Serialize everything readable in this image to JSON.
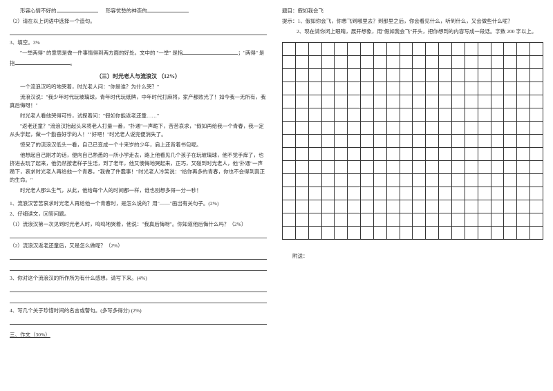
{
  "left": {
    "l1a": "形容心情不好的",
    "l1b": "形容忧愁的神态的",
    "l2": "（2）请在以上词语中选择一个造句。",
    "q3": "3、填空。3%",
    "q3text1": "\"一举两得\" 的意思是做一件事情得到两方面的好处。文中的 \"一举\" 是指",
    "q3text2": "\"两得\" 是",
    "q3text3": "指",
    "sectionTitle": "（三）时光老人与流浪汉 （12%）",
    "p1": "一个流浪汉呜呜地哭着，时光老人问：\"你是谁？为什么哭？\"",
    "p2": "流浪汉说：\"我少年时代玩玻璃球，青年时代玩纸牌，中年时代打麻将，家产都败光了！如今我一无所有，我真后悔呀！\"",
    "p3": "时光老人看他哭得可怜，试探着问：\"假如你能返老还童……\"",
    "p4": "\"返老还童？\"流浪汉抬起头来将老人打量一番，\"扑通\"一声跪下，苦苦哀求，\"假如再给我一个青春，我一定从头学起，做一个勤奋好学的人！\"\"好吧！\"时光老人说完便消失了。",
    "p5": "惊呆了的流浪汉低头一看，自己已变成一个十来岁的少年，肩上还背着书包呢。",
    "p6": "他想起自己刚才的话，便向自己熟悉的一所小学走去，路上他看见几个孩子在玩玻璃球，他不觉手痒了，也挤进去玩了起来，他仍然按老样子生活，到了老年，他又懊悔地哭起来，正巧，又碰到时光老人，他\"扑通\"一声跪下，哀求时光老人再给他一个青春，\"我做了件蠢事！\"时光老人冷笑说：\"给你再多的青春，你也不会得到真正的生命。\"",
    "p7": "时光老人那么生气，从此，他给每个人的时间都一样，谁也别想多得一分一秒！",
    "q1": "1、流浪汉苦苦哀求时光老人再给他一个青春时，是怎么说的？用\"——\"画出有关句子。(2%)",
    "q2": "2、仔细读文，回答问题。",
    "q2a": "（1）流浪汉第一次见到时光老人时，呜呜地哭着，他说：\"我真后悔呀\"。你知道他后悔什么吗？（2%）",
    "q2b": "（2）流浪汉返老还童后，又是怎么做呢？（2%）",
    "q3main": "3、你对这个流浪汉的所作所为有什么感想，请写下来。(4%)",
    "q4": "4、写几个关于珍惜时间的名言或警句。(多写多得分) (2%)",
    "section3": "三、作文（30%）"
  },
  "right": {
    "topic": "题目：假如我会飞",
    "hint1lbl": "提示：",
    "hint1": "1、假如你会飞，你想飞到哪里去？到那里之后，你会看见什么，听到什么，又会做些什么呢？",
    "hint2": "2、现在请你闭上眼睛，展开想象，用\"假如我会飞\"开头，把你想到的内容写成一段话。字数 200 字以上。",
    "appendix": "附送：",
    "grid": {
      "rows": 15,
      "cols": 20
    }
  }
}
